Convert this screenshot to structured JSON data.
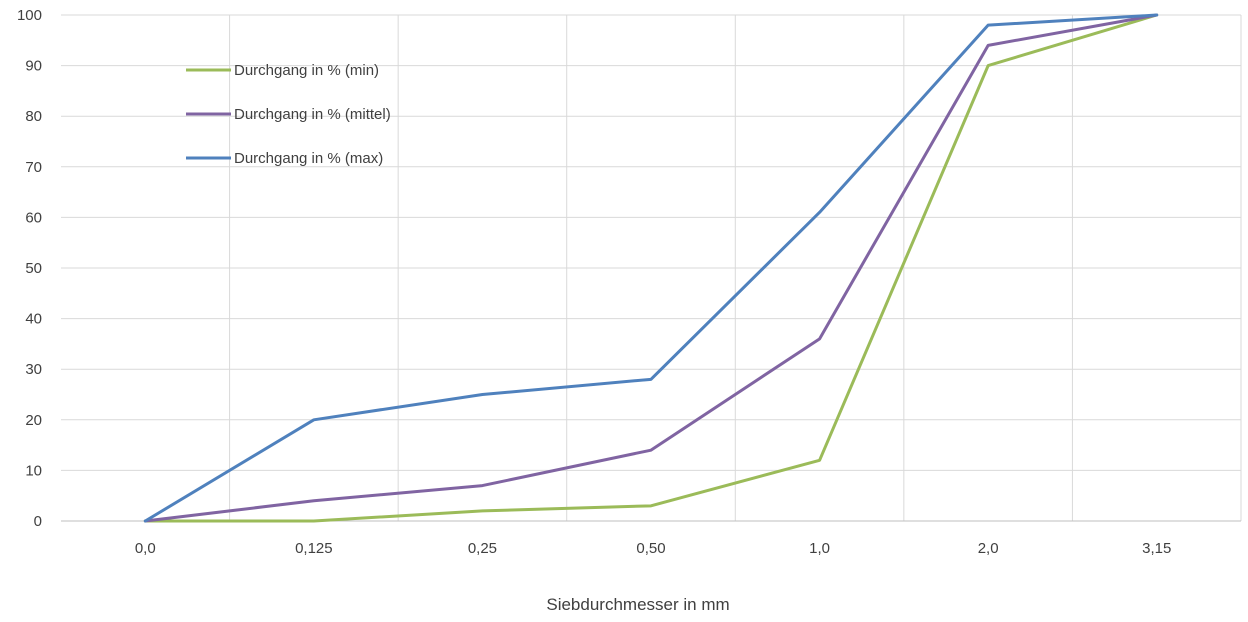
{
  "chart_data": {
    "type": "line",
    "title": "",
    "xlabel": "Siebdurchmesser in mm",
    "ylabel": "",
    "categories": [
      "0,0",
      "0,125",
      "0,25",
      "0,50",
      "1,0",
      "2,0",
      "3,15"
    ],
    "ylim": [
      0,
      100
    ],
    "yticks": [
      0,
      10,
      20,
      30,
      40,
      50,
      60,
      70,
      80,
      90,
      100
    ],
    "grid": true,
    "legend_position": "top-left",
    "series": [
      {
        "name": "Durchgang in % (min)",
        "color": "#9bbb59",
        "values": [
          0,
          0,
          2,
          3,
          12,
          90,
          100
        ]
      },
      {
        "name": "Durchgang in % (mittel)",
        "color": "#8064a2",
        "values": [
          0,
          4,
          7,
          14,
          36,
          94,
          100
        ]
      },
      {
        "name": "Durchgang in % (max)",
        "color": "#4f81bd",
        "values": [
          0,
          20,
          25,
          28,
          61,
          98,
          100
        ]
      }
    ]
  }
}
